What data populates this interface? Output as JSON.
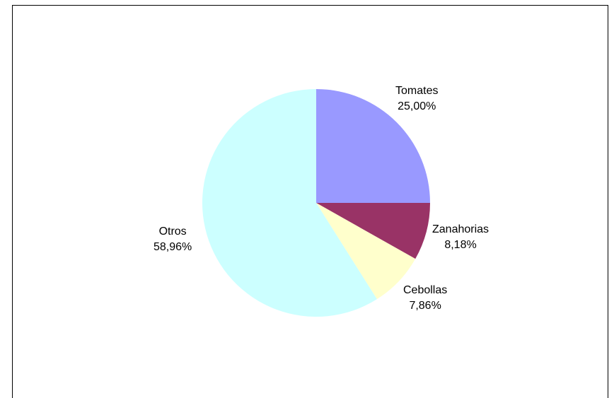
{
  "chart_data": {
    "type": "pie",
    "title": "",
    "start_angle_deg": 0,
    "direction": "clockwise",
    "slices": [
      {
        "label": "Tomates",
        "value": 25.0,
        "value_label": "25,00%",
        "color": "#9999ff"
      },
      {
        "label": "Zanahorias",
        "value": 8.18,
        "value_label": "8,18%",
        "color": "#993366"
      },
      {
        "label": "Cebollas",
        "value": 7.86,
        "value_label": "7,86%",
        "color": "#ffffcc"
      },
      {
        "label": "Otros",
        "value": 58.96,
        "value_label": "58,96%",
        "color": "#ccffff"
      }
    ]
  }
}
